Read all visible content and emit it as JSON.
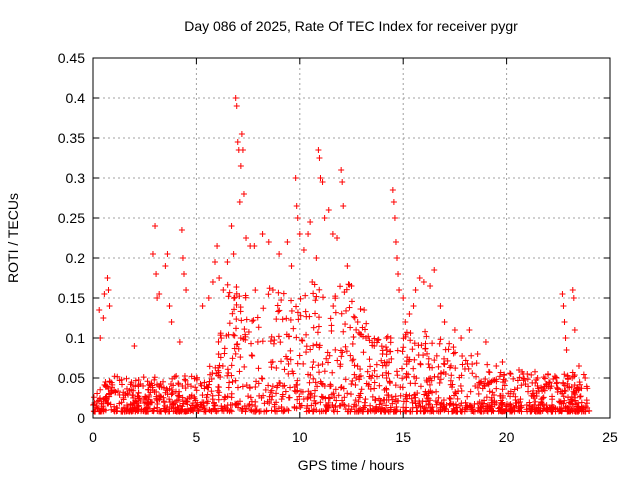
{
  "chart_data": {
    "type": "scatter",
    "title": "Day 086 of 2025, Rate Of TEC Index for receiver pygr",
    "xlabel": "GPS time / hours",
    "ylabel": "ROTI / TECUs",
    "xlim": [
      0,
      25
    ],
    "ylim": [
      0,
      0.45
    ],
    "xticks": [
      0,
      5,
      10,
      15,
      20,
      25
    ],
    "yticks": [
      0,
      0.05,
      0.1,
      0.15,
      0.2,
      0.25,
      0.3,
      0.35,
      0.4,
      0.45
    ],
    "grid": true,
    "marker": "+",
    "color": "#ff0000",
    "points": [
      [
        0.3,
        0.135
      ],
      [
        0.35,
        0.1
      ],
      [
        0.5,
        0.125
      ],
      [
        0.55,
        0.155
      ],
      [
        0.7,
        0.175
      ],
      [
        0.75,
        0.16
      ],
      [
        0.8,
        0.14
      ],
      [
        2.0,
        0.09
      ],
      [
        2.9,
        0.205
      ],
      [
        3.0,
        0.24
      ],
      [
        3.05,
        0.18
      ],
      [
        3.1,
        0.15
      ],
      [
        3.2,
        0.155
      ],
      [
        3.5,
        0.19
      ],
      [
        3.6,
        0.205
      ],
      [
        3.7,
        0.14
      ],
      [
        3.8,
        0.12
      ],
      [
        4.3,
        0.235
      ],
      [
        4.35,
        0.2
      ],
      [
        4.4,
        0.18
      ],
      [
        4.5,
        0.16
      ],
      [
        4.2,
        0.095
      ],
      [
        5.3,
        0.14
      ],
      [
        5.6,
        0.15
      ],
      [
        5.8,
        0.17
      ],
      [
        5.9,
        0.195
      ],
      [
        6.0,
        0.215
      ],
      [
        6.1,
        0.175
      ],
      [
        6.3,
        0.16
      ],
      [
        6.5,
        0.195
      ],
      [
        6.7,
        0.24
      ],
      [
        6.8,
        0.205
      ],
      [
        6.9,
        0.4
      ],
      [
        6.95,
        0.39
      ],
      [
        7.0,
        0.345
      ],
      [
        7.05,
        0.335
      ],
      [
        7.1,
        0.27
      ],
      [
        7.2,
        0.355
      ],
      [
        7.25,
        0.335
      ],
      [
        7.3,
        0.28
      ],
      [
        7.15,
        0.315
      ],
      [
        7.4,
        0.225
      ],
      [
        7.6,
        0.215
      ],
      [
        7.8,
        0.215
      ],
      [
        8.2,
        0.23
      ],
      [
        8.5,
        0.22
      ],
      [
        8.7,
        0.16
      ],
      [
        9.0,
        0.205
      ],
      [
        9.4,
        0.22
      ],
      [
        9.6,
        0.19
      ],
      [
        9.8,
        0.3
      ],
      [
        9.85,
        0.265
      ],
      [
        9.9,
        0.25
      ],
      [
        10.0,
        0.23
      ],
      [
        10.2,
        0.21
      ],
      [
        10.4,
        0.23
      ],
      [
        10.5,
        0.245
      ],
      [
        10.6,
        0.17
      ],
      [
        10.8,
        0.2
      ],
      [
        10.9,
        0.335
      ],
      [
        10.95,
        0.325
      ],
      [
        11.0,
        0.3
      ],
      [
        11.1,
        0.295
      ],
      [
        11.2,
        0.25
      ],
      [
        11.4,
        0.26
      ],
      [
        11.6,
        0.23
      ],
      [
        11.8,
        0.225
      ],
      [
        12.0,
        0.31
      ],
      [
        12.05,
        0.295
      ],
      [
        12.1,
        0.265
      ],
      [
        12.3,
        0.19
      ],
      [
        12.5,
        0.165
      ],
      [
        12.8,
        0.12
      ],
      [
        13.2,
        0.1
      ],
      [
        13.6,
        0.09
      ],
      [
        14.0,
        0.08
      ],
      [
        14.2,
        0.05
      ],
      [
        14.4,
        0.1
      ],
      [
        14.5,
        0.285
      ],
      [
        14.55,
        0.27
      ],
      [
        14.6,
        0.25
      ],
      [
        14.65,
        0.22
      ],
      [
        14.7,
        0.2
      ],
      [
        14.75,
        0.18
      ],
      [
        14.8,
        0.16
      ],
      [
        15.0,
        0.15
      ],
      [
        15.1,
        0.12
      ],
      [
        15.3,
        0.13
      ],
      [
        15.5,
        0.14
      ],
      [
        15.6,
        0.16
      ],
      [
        15.8,
        0.175
      ],
      [
        16.0,
        0.17
      ],
      [
        16.3,
        0.165
      ],
      [
        16.5,
        0.185
      ],
      [
        16.8,
        0.14
      ],
      [
        17.0,
        0.12
      ],
      [
        17.5,
        0.11
      ],
      [
        17.8,
        0.1
      ],
      [
        18.2,
        0.11
      ],
      [
        18.6,
        0.08
      ],
      [
        19.0,
        0.095
      ],
      [
        19.5,
        0.065
      ],
      [
        19.8,
        0.07
      ],
      [
        20.2,
        0.055
      ],
      [
        20.6,
        0.06
      ],
      [
        21.0,
        0.055
      ],
      [
        21.5,
        0.05
      ],
      [
        22.0,
        0.055
      ],
      [
        22.4,
        0.05
      ],
      [
        22.7,
        0.155
      ],
      [
        22.75,
        0.14
      ],
      [
        22.8,
        0.12
      ],
      [
        22.85,
        0.1
      ],
      [
        22.9,
        0.085
      ],
      [
        23.2,
        0.16
      ],
      [
        23.25,
        0.15
      ],
      [
        23.3,
        0.11
      ],
      [
        23.5,
        0.065
      ],
      [
        23.8,
        0.05
      ]
    ]
  }
}
